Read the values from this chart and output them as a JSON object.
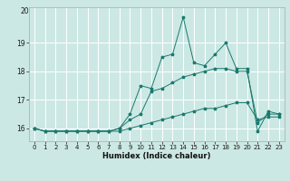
{
  "title": "",
  "xlabel": "Humidex (Indice chaleur)",
  "bg_color": "#cce8e4",
  "grid_color": "#ffffff",
  "line_color": "#1a7a6e",
  "x_values": [
    0,
    1,
    2,
    3,
    4,
    5,
    6,
    7,
    8,
    9,
    10,
    11,
    12,
    13,
    14,
    15,
    16,
    17,
    18,
    19,
    20,
    21,
    22,
    23
  ],
  "series1": [
    16.0,
    15.9,
    15.9,
    15.9,
    15.9,
    15.9,
    15.9,
    15.9,
    16.0,
    16.5,
    17.5,
    17.4,
    18.5,
    18.6,
    19.9,
    18.3,
    18.2,
    18.6,
    19.0,
    18.1,
    18.1,
    15.9,
    16.6,
    16.5
  ],
  "series2": [
    16.0,
    15.9,
    15.9,
    15.9,
    15.9,
    15.9,
    15.9,
    15.9,
    16.0,
    16.3,
    16.5,
    17.3,
    17.4,
    17.6,
    17.8,
    17.9,
    18.0,
    18.1,
    18.1,
    18.0,
    18.0,
    16.2,
    16.5,
    16.5
  ],
  "series3": [
    16.0,
    15.9,
    15.9,
    15.9,
    15.9,
    15.9,
    15.9,
    15.9,
    15.9,
    16.0,
    16.1,
    16.2,
    16.3,
    16.4,
    16.5,
    16.6,
    16.7,
    16.7,
    16.8,
    16.9,
    16.9,
    16.3,
    16.4,
    16.4
  ],
  "ylim_min": 15.55,
  "ylim_max": 20.25,
  "yticks": [
    16,
    17,
    18,
    19
  ],
  "xticks": [
    0,
    1,
    2,
    3,
    4,
    5,
    6,
    7,
    8,
    9,
    10,
    11,
    12,
    13,
    14,
    15,
    16,
    17,
    18,
    19,
    20,
    21,
    22,
    23
  ],
  "xlabel_fontsize": 6.0,
  "tick_fontsize": 5.0,
  "marker_size": 2.5,
  "linewidth": 0.7
}
